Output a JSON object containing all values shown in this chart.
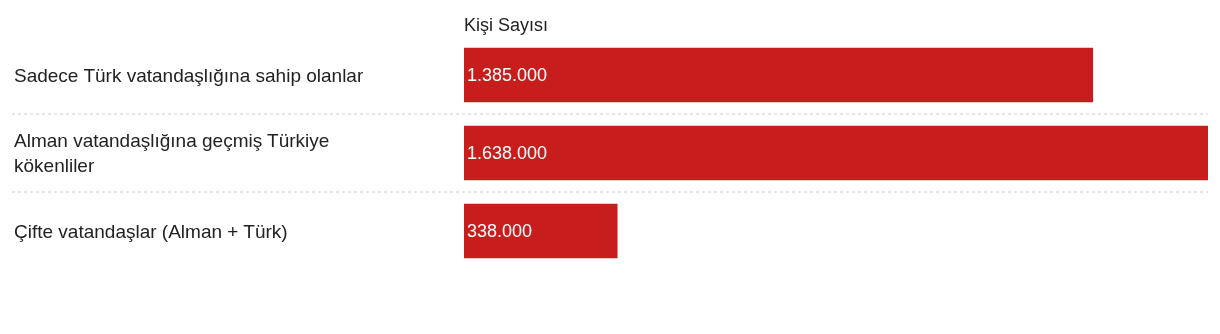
{
  "chart_data": {
    "type": "bar",
    "orientation": "horizontal",
    "title": "Kişi Sayısı",
    "categories": [
      "Sadece Türk vatandaşlığına sahip olanlar",
      "Alman vatandaşlığına geçmiş Türkiye kökenliler",
      "Çifte vatandaşlar (Alman + Türk)"
    ],
    "values": [
      1385000,
      1638000,
      338000
    ],
    "value_labels": [
      "1.385.000",
      "1.638.000",
      "338.000"
    ],
    "color": "#c71e1d",
    "tick_labels": false,
    "grid": false,
    "legend": false
  }
}
